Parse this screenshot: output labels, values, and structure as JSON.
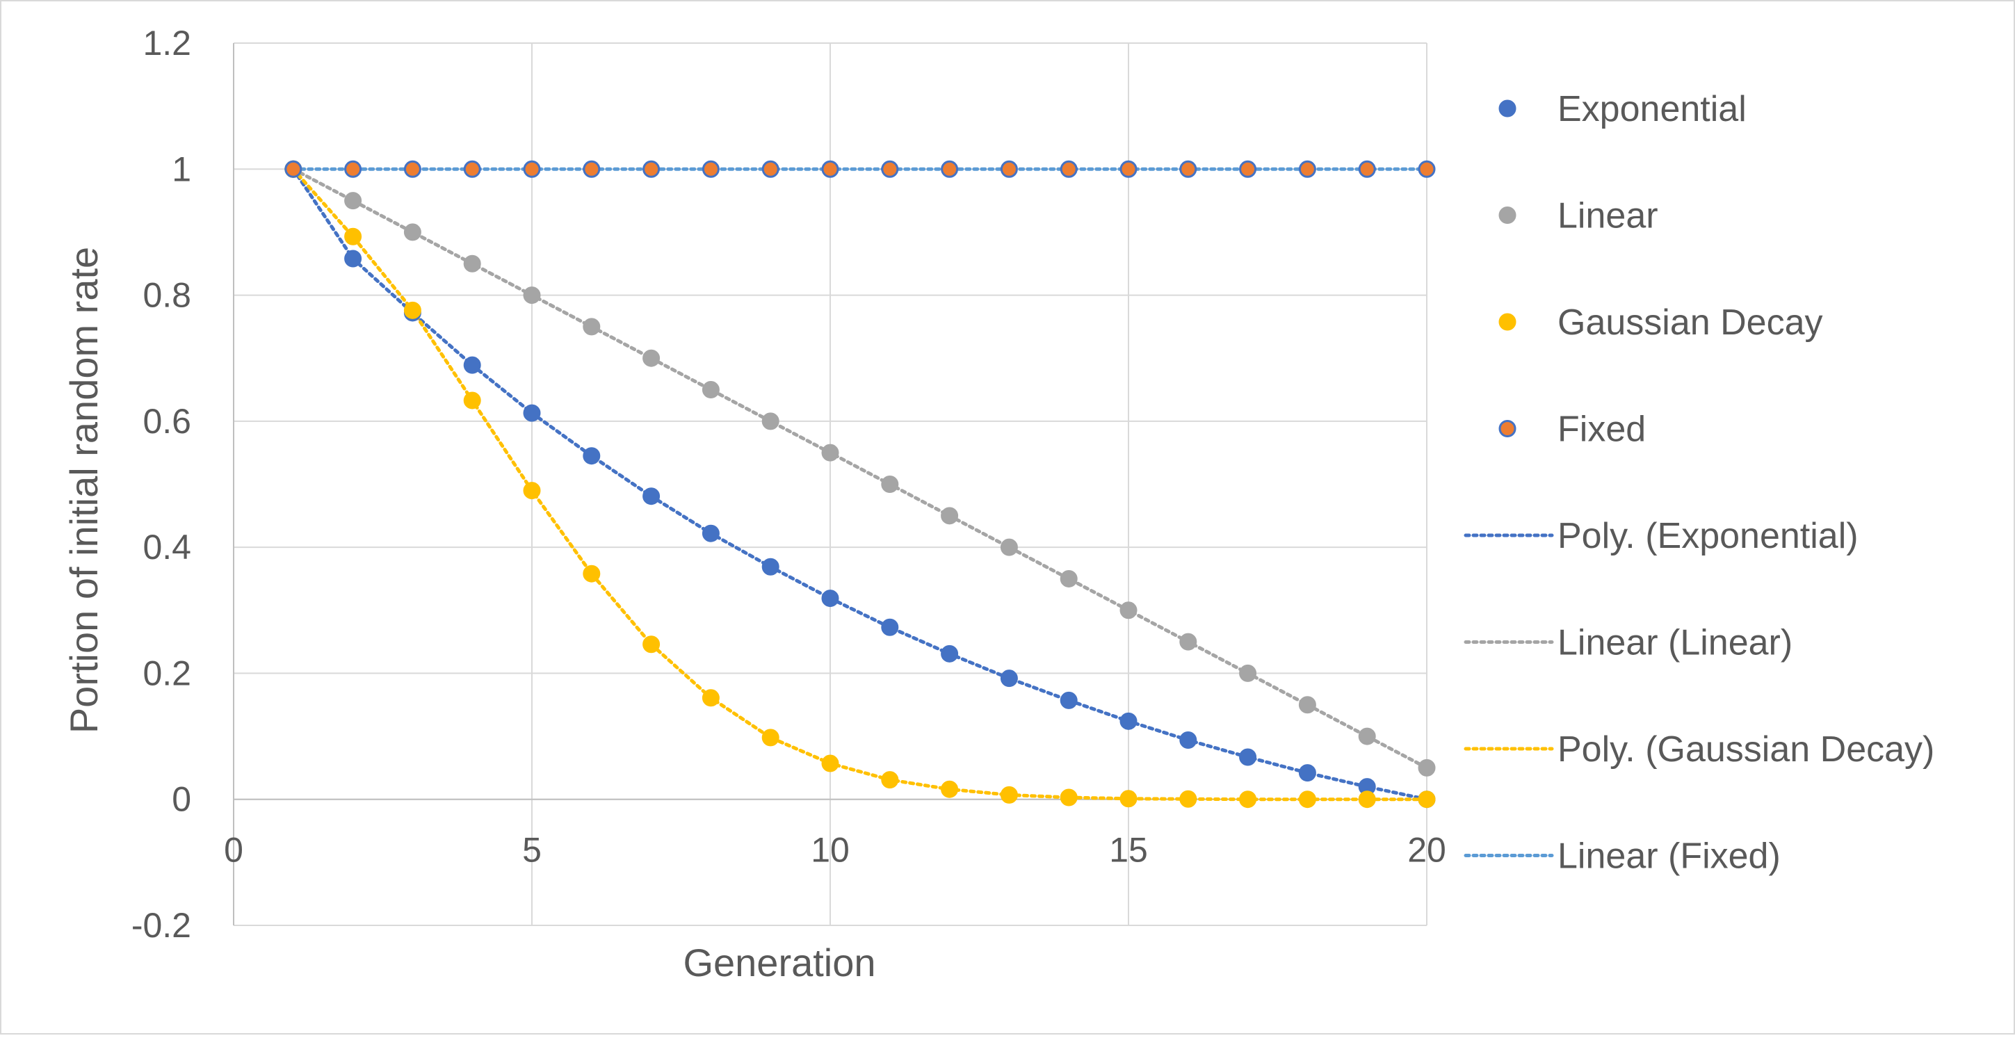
{
  "chart_data": {
    "type": "scatter",
    "title": "",
    "xlabel": "Generation",
    "ylabel": "Portion of initial random rate",
    "xlim": [
      0,
      20
    ],
    "ylim": [
      -0.2,
      1.2
    ],
    "x_ticks": [
      0,
      5,
      10,
      15,
      20
    ],
    "y_ticks": [
      -0.2,
      0,
      0.2,
      0.4,
      0.6,
      0.8,
      1,
      1.2
    ],
    "x_tick_labels": [
      "0",
      "5",
      "10",
      "15",
      "20"
    ],
    "y_tick_labels": [
      "-0.2",
      "0",
      "0.2",
      "0.4",
      "0.6",
      "0.8",
      "1",
      "1.2"
    ],
    "grid": true,
    "legend_position": "right",
    "x": [
      1,
      2,
      3,
      4,
      5,
      6,
      7,
      8,
      9,
      10,
      11,
      12,
      13,
      14,
      15,
      16,
      17,
      18,
      19,
      20
    ],
    "series": [
      {
        "name": "Exponential",
        "color": "#4472C4",
        "marker_edge": "#4472C4",
        "values": [
          1,
          0.858,
          0.772,
          0.689,
          0.613,
          0.545,
          0.481,
          0.422,
          0.369,
          0.319,
          0.273,
          0.231,
          0.192,
          0.157,
          0.124,
          0.094,
          0.067,
          0.042,
          0.02,
          0
        ]
      },
      {
        "name": "Linear",
        "color": "#A5A5A5",
        "marker_edge": "#A5A5A5",
        "values": [
          1,
          0.95,
          0.9,
          0.85,
          0.8,
          0.75,
          0.7,
          0.65,
          0.6,
          0.55,
          0.5,
          0.45,
          0.4,
          0.35,
          0.3,
          0.25,
          0.2,
          0.15,
          0.1,
          0.05
        ]
      },
      {
        "name": "Gaussian Decay",
        "color": "#FFC000",
        "marker_edge": "#FFC000",
        "values": [
          1,
          0.893,
          0.776,
          0.633,
          0.49,
          0.358,
          0.246,
          0.161,
          0.098,
          0.057,
          0.031,
          0.016,
          0.007,
          0.003,
          0.001,
          0.0005,
          0,
          0,
          0,
          0
        ]
      },
      {
        "name": "Fixed",
        "color": "#ED7D31",
        "marker_edge": "#4472C4",
        "values": [
          1,
          1,
          1,
          1,
          1,
          1,
          1,
          1,
          1,
          1,
          1,
          1,
          1,
          1,
          1,
          1,
          1,
          1,
          1,
          1
        ]
      }
    ],
    "trendlines": [
      {
        "name": "Poly. (Exponential)",
        "of": "Exponential",
        "color": "#4472C4"
      },
      {
        "name": "Linear (Linear)",
        "of": "Linear",
        "color": "#A5A5A5"
      },
      {
        "name": "Poly. (Gaussian Decay)",
        "of": "Gaussian Decay",
        "color": "#FFC000"
      },
      {
        "name": "Linear (Fixed)",
        "of": "Fixed",
        "color": "#5B9BD5"
      }
    ]
  }
}
